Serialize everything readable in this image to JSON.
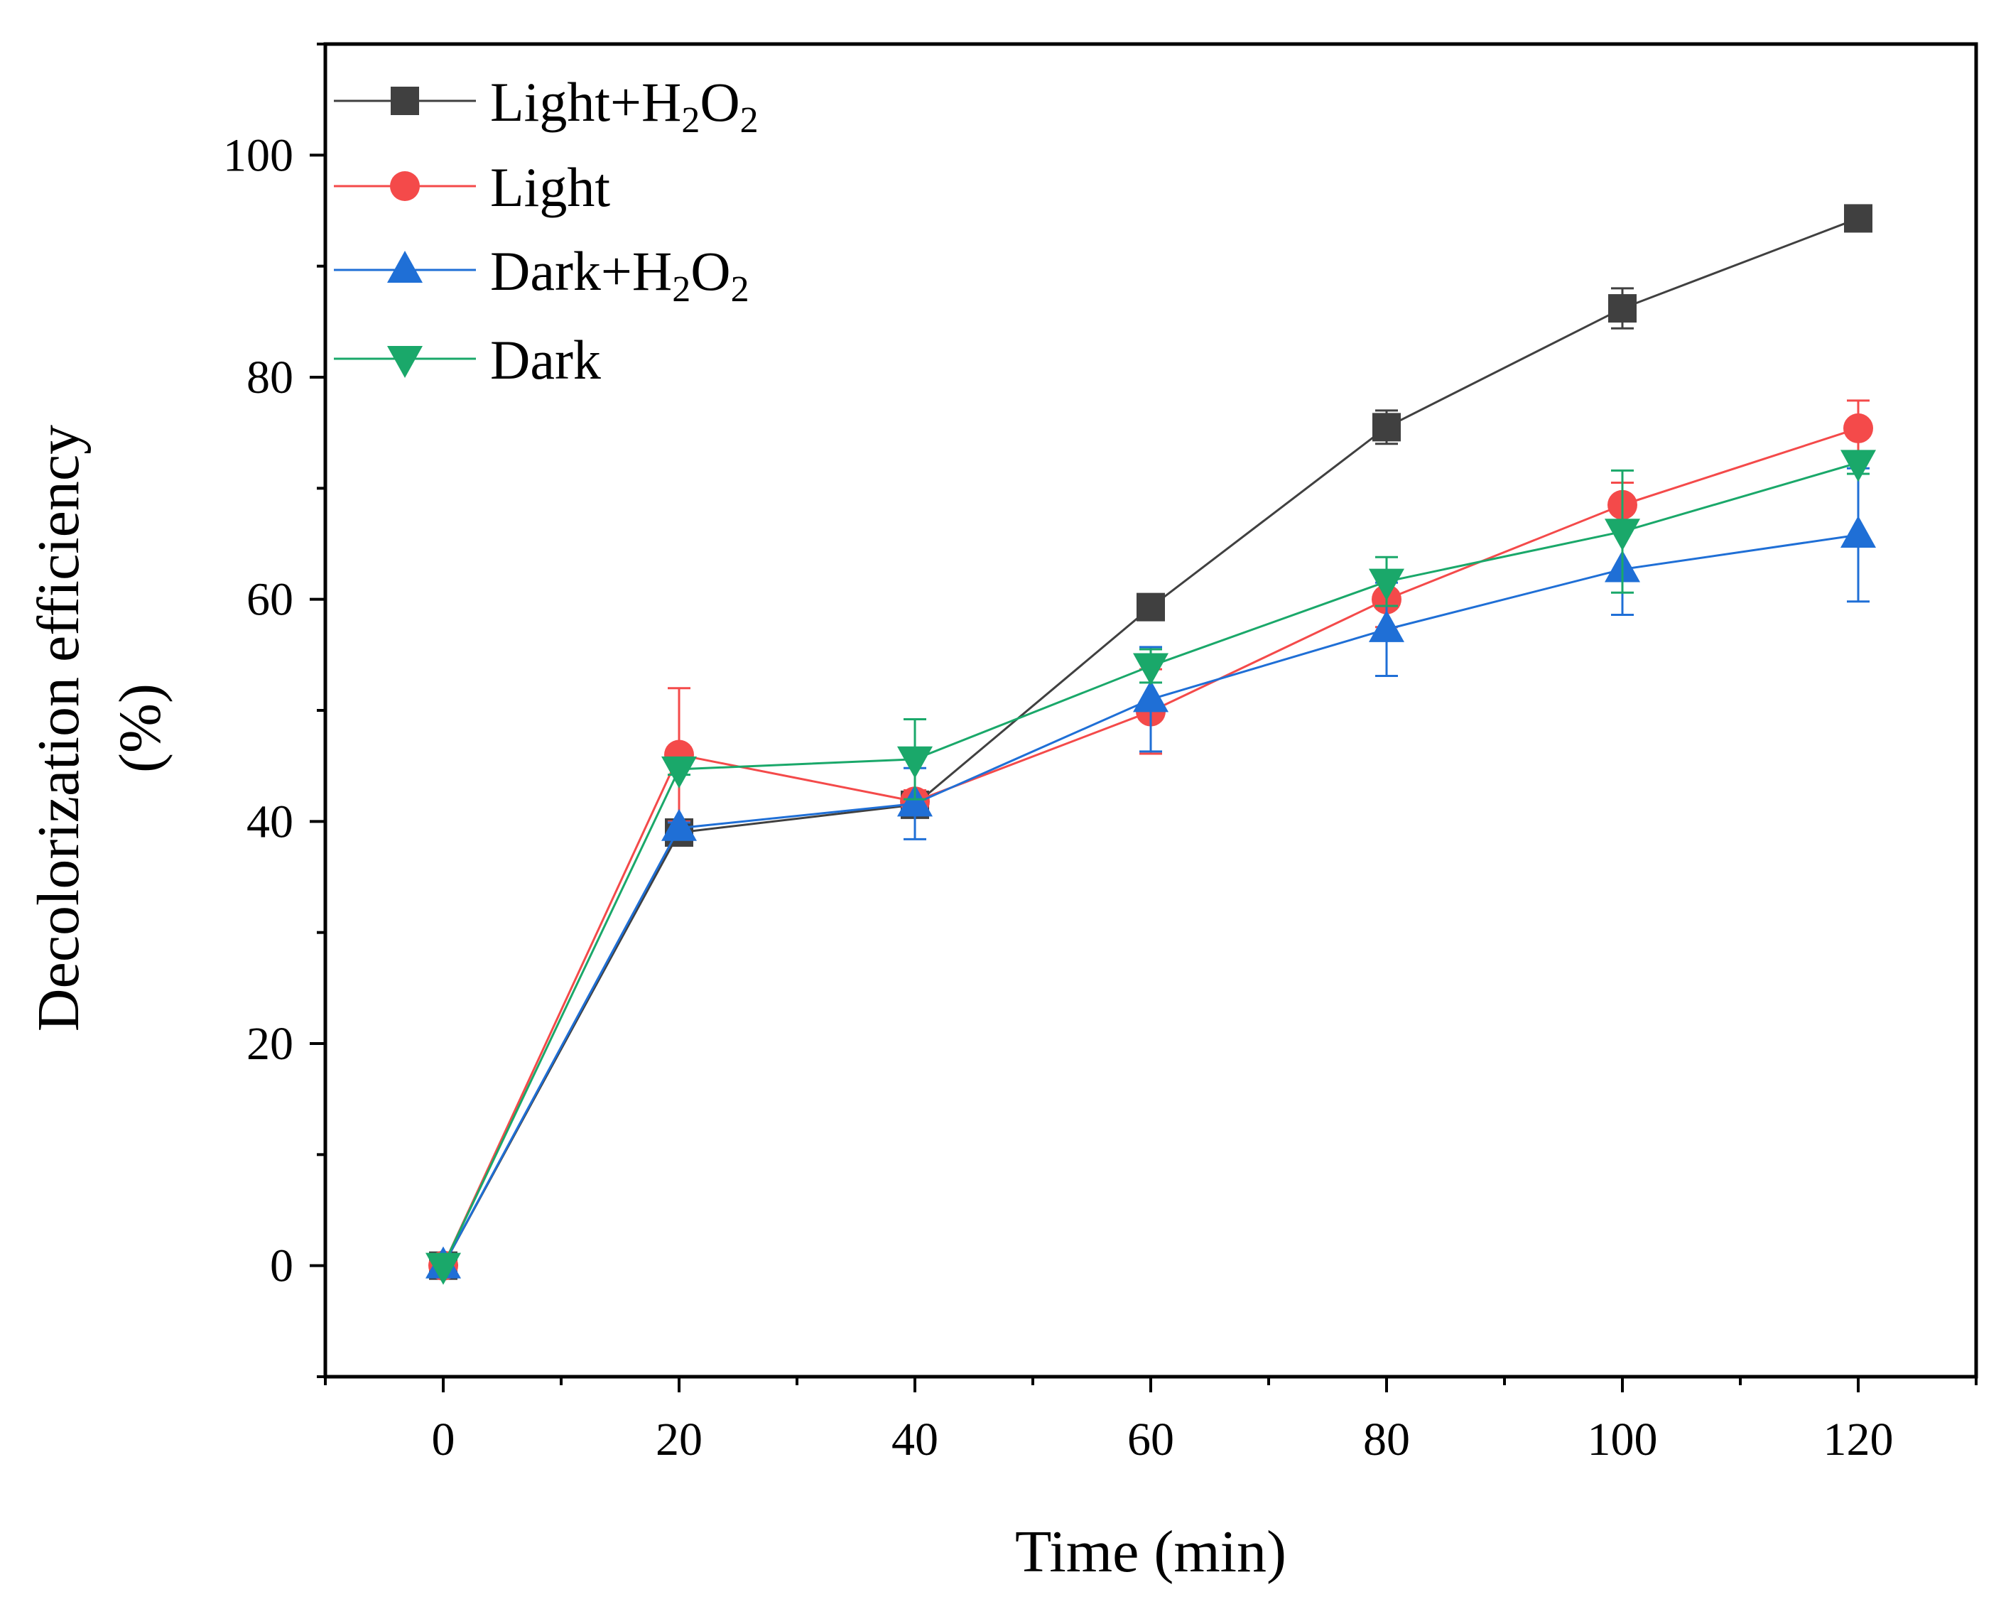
{
  "chart_data": {
    "type": "line",
    "title": "",
    "xlabel": "Time (min)",
    "ylabel_line1": "Decolorization efficiency",
    "ylabel_line2": "(%)",
    "xlim": [
      -10,
      130
    ],
    "ylim": [
      -10,
      110
    ],
    "xticks": [
      0,
      20,
      40,
      60,
      80,
      100,
      120
    ],
    "xtick_labels": [
      "0",
      "20",
      "40",
      "60",
      "80",
      "100",
      "120"
    ],
    "yticks": [
      0,
      20,
      40,
      60,
      80,
      100
    ],
    "ytick_labels": [
      "0",
      "20",
      "40",
      "60",
      "80",
      "100"
    ],
    "legend_position": "top-left",
    "grid": false,
    "x": [
      0,
      20,
      40,
      60,
      80,
      100,
      120
    ],
    "series": [
      {
        "name": "Light+H2O2",
        "label_main": "Light+H",
        "label_sub1": "2",
        "label_mid": "O",
        "label_sub2": "2",
        "color": "#404040",
        "marker": "square",
        "values": [
          0,
          39.0,
          41.5,
          59.3,
          75.5,
          86.2,
          94.3
        ],
        "errors": [
          0,
          0.8,
          0.8,
          0.8,
          1.5,
          1.8,
          0.8
        ]
      },
      {
        "name": "Light",
        "label_main": "Light",
        "label_sub1": "",
        "label_mid": "",
        "label_sub2": "",
        "color": "#f44a4a",
        "marker": "circle",
        "values": [
          0,
          46.0,
          41.8,
          49.9,
          60.0,
          68.5,
          75.4
        ],
        "errors": [
          0,
          6.0,
          1.0,
          3.8,
          2.5,
          2.0,
          2.5
        ]
      },
      {
        "name": "Dark+H2O2",
        "label_main": "Dark+H",
        "label_sub1": "2",
        "label_mid": "O",
        "label_sub2": "2",
        "color": "#1f6fd6",
        "marker": "triangle-up",
        "values": [
          0,
          39.4,
          41.6,
          51.0,
          57.3,
          62.7,
          65.8
        ],
        "errors": [
          0,
          0.5,
          3.2,
          4.7,
          4.2,
          4.1,
          6.0
        ]
      },
      {
        "name": "Dark",
        "label_main": "Dark",
        "label_sub1": "",
        "label_mid": "",
        "label_sub2": "",
        "color": "#1aa86a",
        "marker": "triangle-down",
        "values": [
          0,
          44.7,
          45.6,
          54.0,
          61.6,
          66.1,
          72.3
        ],
        "errors": [
          0,
          0.5,
          3.6,
          1.5,
          2.2,
          5.5,
          1.0
        ]
      }
    ]
  }
}
